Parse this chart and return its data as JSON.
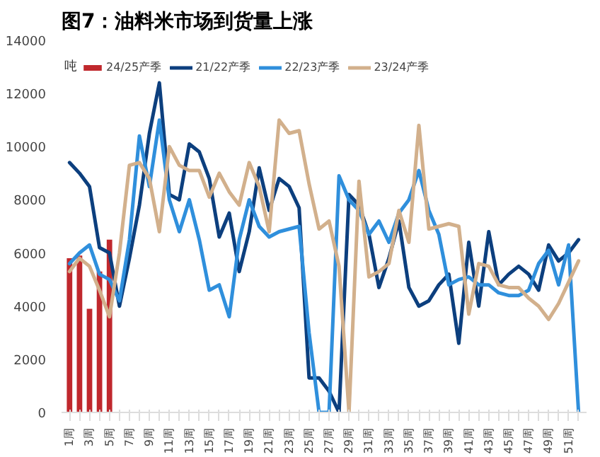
{
  "chart_data": {
    "type": "line",
    "title": "图7：油料米市场到货量上涨",
    "ylabel": "吨",
    "categories": [
      "1周",
      null,
      "3周",
      null,
      "5周",
      null,
      "7周",
      null,
      "9周",
      null,
      "11周",
      null,
      "13周",
      null,
      "15周",
      null,
      "17周",
      null,
      "19周",
      null,
      "21周",
      null,
      "23周",
      null,
      "25周",
      null,
      "27周",
      null,
      "29周",
      null,
      "31周",
      null,
      "33周",
      null,
      "35周",
      null,
      "37周",
      null,
      "39周",
      null,
      "41周",
      null,
      "43周",
      null,
      "45周",
      null,
      "47周",
      null,
      "49周",
      null,
      "51周",
      null
    ],
    "ylim": [
      0,
      14000
    ],
    "yticks": [
      0,
      2000,
      4000,
      6000,
      8000,
      10000,
      12000,
      14000
    ],
    "grid": false,
    "legend": "top left",
    "series": [
      {
        "name": "24/25产季",
        "type": "bar",
        "color": "#c0282d",
        "values": [
          5800,
          5900,
          3900,
          5300,
          6500,
          null,
          null,
          null,
          null,
          null,
          null,
          null,
          null,
          null,
          null,
          null,
          null,
          null,
          null,
          null,
          null,
          null,
          null,
          null,
          null,
          null,
          null,
          null,
          null,
          null,
          null,
          null,
          null,
          null,
          null,
          null,
          null,
          null,
          null,
          null,
          null,
          null,
          null,
          null,
          null,
          null,
          null,
          null,
          null,
          null,
          null,
          null
        ]
      },
      {
        "name": "21/22产季",
        "color": "#0c3f7e",
        "values": [
          9400,
          9000,
          8500,
          6200,
          6000,
          4000,
          5800,
          7800,
          10500,
          12400,
          8200,
          8000,
          10100,
          9800,
          8800,
          6600,
          7500,
          5300,
          6800,
          9200,
          7600,
          8800,
          8500,
          7700,
          1300,
          1300,
          800,
          0,
          8200,
          7800,
          6700,
          4700,
          5800,
          7200,
          4700,
          4000,
          4200,
          4800,
          5200,
          2600,
          6400,
          4000,
          6800,
          4800,
          5200,
          5500,
          5200,
          4600,
          6300,
          5700,
          6000,
          6500
        ]
      },
      {
        "name": "22/23产季",
        "color": "#2f8fdc",
        "values": [
          5600,
          6000,
          6300,
          5200,
          5000,
          4200,
          6500,
          10400,
          8500,
          11000,
          8000,
          6800,
          8000,
          6500,
          4600,
          4800,
          3600,
          6500,
          8000,
          7000,
          6600,
          6800,
          6900,
          7000,
          3000,
          0,
          0,
          8900,
          8000,
          7600,
          6700,
          7200,
          6400,
          7500,
          8000,
          9100,
          7600,
          6700,
          4800,
          5000,
          5100,
          4800,
          4800,
          4500,
          4400,
          4400,
          4600,
          5600,
          6100,
          4800,
          6300,
          0
        ]
      },
      {
        "name": "23/24产季",
        "color": "#d2b08c",
        "values": [
          5300,
          5800,
          5500,
          4600,
          3600,
          6000,
          9300,
          9400,
          8800,
          6800,
          10000,
          9300,
          9100,
          9100,
          8100,
          9000,
          8300,
          7800,
          9400,
          8500,
          6800,
          11000,
          10500,
          10600,
          8600,
          6900,
          7200,
          5500,
          0,
          8700,
          5100,
          5300,
          5600,
          7600,
          6400,
          10800,
          6900,
          7000,
          7100,
          7000,
          3700,
          5600,
          5500,
          4800,
          4700,
          4700,
          4300,
          4000,
          3500,
          4100,
          4900,
          5700
        ]
      }
    ]
  }
}
